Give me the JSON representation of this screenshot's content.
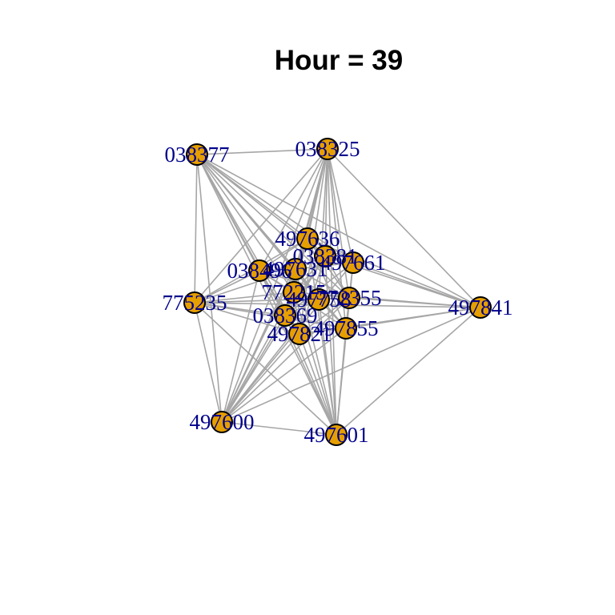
{
  "title": "Hour = 39",
  "colors": {
    "node_fill": "#e69f00",
    "node_stroke": "#000000",
    "edge": "#a6a6a6",
    "label": "#00008b"
  },
  "nodes": [
    {
      "id": "038377"
    },
    {
      "id": "038325"
    },
    {
      "id": "497636"
    },
    {
      "id": "038381"
    },
    {
      "id": "497661"
    },
    {
      "id": "038496"
    },
    {
      "id": "497631"
    },
    {
      "id": "772215"
    },
    {
      "id": "497758"
    },
    {
      "id": "772355"
    },
    {
      "id": "775235"
    },
    {
      "id": "497841"
    },
    {
      "id": "038369"
    },
    {
      "id": "497821"
    },
    {
      "id": "497855"
    },
    {
      "id": "497600"
    },
    {
      "id": "497601"
    }
  ],
  "edges": [
    [
      "038377",
      "038325"
    ],
    [
      "038377",
      "775235"
    ],
    [
      "038377",
      "497600"
    ],
    [
      "038377",
      "497636"
    ],
    [
      "038377",
      "038381"
    ],
    [
      "038377",
      "497661"
    ],
    [
      "038377",
      "038496"
    ],
    [
      "038377",
      "497631"
    ],
    [
      "038377",
      "772215"
    ],
    [
      "038377",
      "497758"
    ],
    [
      "038377",
      "772355"
    ],
    [
      "038377",
      "038369"
    ],
    [
      "038377",
      "497821"
    ],
    [
      "038377",
      "497855"
    ],
    [
      "038377",
      "497841"
    ],
    [
      "038377",
      "497601"
    ],
    [
      "038325",
      "775235"
    ],
    [
      "038325",
      "497636"
    ],
    [
      "038325",
      "038381"
    ],
    [
      "038325",
      "497661"
    ],
    [
      "038325",
      "038496"
    ],
    [
      "038325",
      "497631"
    ],
    [
      "038325",
      "772215"
    ],
    [
      "038325",
      "497758"
    ],
    [
      "038325",
      "772355"
    ],
    [
      "038325",
      "038369"
    ],
    [
      "038325",
      "497821"
    ],
    [
      "038325",
      "497855"
    ],
    [
      "038325",
      "497841"
    ],
    [
      "038325",
      "497600"
    ],
    [
      "038325",
      "497601"
    ],
    [
      "775235",
      "497636"
    ],
    [
      "775235",
      "038496"
    ],
    [
      "775235",
      "497631"
    ],
    [
      "775235",
      "772215"
    ],
    [
      "775235",
      "038369"
    ],
    [
      "775235",
      "497821"
    ],
    [
      "775235",
      "497855"
    ],
    [
      "775235",
      "772355"
    ],
    [
      "775235",
      "497841"
    ],
    [
      "775235",
      "497600"
    ],
    [
      "775235",
      "497601"
    ],
    [
      "497841",
      "497636"
    ],
    [
      "497841",
      "038381"
    ],
    [
      "497841",
      "497661"
    ],
    [
      "497841",
      "772355"
    ],
    [
      "497841",
      "497855"
    ],
    [
      "497841",
      "497821"
    ],
    [
      "497841",
      "772215"
    ],
    [
      "497841",
      "497600"
    ],
    [
      "497841",
      "497601"
    ],
    [
      "497600",
      "497601"
    ],
    [
      "497600",
      "497636"
    ],
    [
      "497600",
      "038381"
    ],
    [
      "497600",
      "497661"
    ],
    [
      "497600",
      "038496"
    ],
    [
      "497600",
      "497631"
    ],
    [
      "497600",
      "772215"
    ],
    [
      "497600",
      "497758"
    ],
    [
      "497600",
      "772355"
    ],
    [
      "497600",
      "038369"
    ],
    [
      "497600",
      "497821"
    ],
    [
      "497600",
      "497855"
    ],
    [
      "497601",
      "497636"
    ],
    [
      "497601",
      "038381"
    ],
    [
      "497601",
      "497661"
    ],
    [
      "497601",
      "038496"
    ],
    [
      "497601",
      "497631"
    ],
    [
      "497601",
      "772215"
    ],
    [
      "497601",
      "497758"
    ],
    [
      "497601",
      "772355"
    ],
    [
      "497601",
      "038369"
    ],
    [
      "497601",
      "497821"
    ],
    [
      "497601",
      "497855"
    ],
    [
      "497636",
      "038381"
    ],
    [
      "497636",
      "497661"
    ],
    [
      "497636",
      "038496"
    ],
    [
      "497636",
      "497631"
    ],
    [
      "497636",
      "772215"
    ],
    [
      "497636",
      "772355"
    ],
    [
      "497636",
      "038369"
    ],
    [
      "497636",
      "497855"
    ],
    [
      "038381",
      "497661"
    ],
    [
      "038381",
      "497631"
    ],
    [
      "038381",
      "772215"
    ],
    [
      "038381",
      "772355"
    ],
    [
      "038381",
      "038369"
    ],
    [
      "038381",
      "497821"
    ],
    [
      "497661",
      "772355"
    ],
    [
      "497661",
      "497855"
    ],
    [
      "497661",
      "497631"
    ],
    [
      "497661",
      "038369"
    ],
    [
      "038496",
      "497631"
    ],
    [
      "038496",
      "772215"
    ],
    [
      "038496",
      "038369"
    ],
    [
      "038496",
      "497821"
    ],
    [
      "038496",
      "772355"
    ],
    [
      "038496",
      "497855"
    ],
    [
      "497631",
      "772215"
    ],
    [
      "497631",
      "497758"
    ],
    [
      "497631",
      "772355"
    ],
    [
      "497631",
      "497855"
    ],
    [
      "772215",
      "497758"
    ],
    [
      "772215",
      "772355"
    ],
    [
      "772215",
      "038369"
    ],
    [
      "772215",
      "497821"
    ],
    [
      "497758",
      "772355"
    ],
    [
      "497758",
      "038369"
    ],
    [
      "497758",
      "497855"
    ],
    [
      "772355",
      "497855"
    ],
    [
      "772355",
      "497821"
    ],
    [
      "038369",
      "497821"
    ],
    [
      "038369",
      "497855"
    ],
    [
      "497821",
      "497855"
    ]
  ]
}
